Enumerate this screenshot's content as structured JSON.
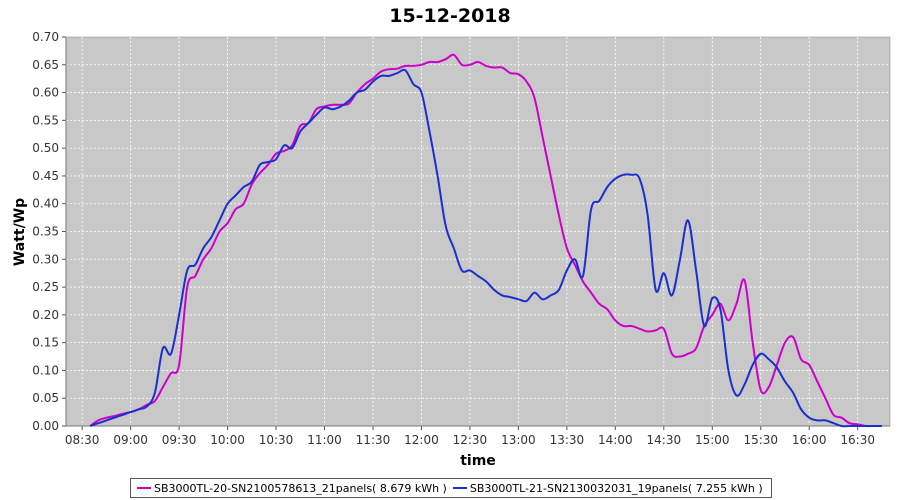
{
  "chart_data": {
    "type": "line",
    "title": "15-12-2018",
    "xlabel": "time",
    "ylabel": "Watt/Wp",
    "xlim": [
      "08:20",
      "16:50"
    ],
    "ylim": [
      0,
      0.7
    ],
    "y_ticks": [
      "0.00",
      "0.05",
      "0.10",
      "0.15",
      "0.20",
      "0.25",
      "0.30",
      "0.35",
      "0.40",
      "0.45",
      "0.50",
      "0.55",
      "0.60",
      "0.65",
      "0.70"
    ],
    "x_ticks": [
      "08:30",
      "09:00",
      "09:30",
      "10:00",
      "10:30",
      "11:00",
      "11:30",
      "12:00",
      "12:30",
      "13:00",
      "13:30",
      "14:00",
      "14:30",
      "15:00",
      "15:30",
      "16:00",
      "16:30"
    ],
    "grid": true,
    "legend_position": "bottom",
    "background": "#c8c8c8",
    "series": [
      {
        "name": "SB3000TL-20-SN2100578613_21panels( 8.679 kWh )",
        "color": "#cc00cc",
        "x": [
          "08:35",
          "08:40",
          "08:45",
          "08:50",
          "08:55",
          "09:00",
          "09:05",
          "09:10",
          "09:15",
          "09:20",
          "09:25",
          "09:30",
          "09:35",
          "09:40",
          "09:45",
          "09:50",
          "09:55",
          "10:00",
          "10:05",
          "10:10",
          "10:15",
          "10:20",
          "10:25",
          "10:30",
          "10:35",
          "10:40",
          "10:45",
          "10:50",
          "10:55",
          "11:00",
          "11:05",
          "11:10",
          "11:15",
          "11:20",
          "11:25",
          "11:30",
          "11:35",
          "11:40",
          "11:45",
          "11:50",
          "11:55",
          "12:00",
          "12:05",
          "12:10",
          "12:15",
          "12:20",
          "12:25",
          "12:30",
          "12:35",
          "12:40",
          "12:45",
          "12:50",
          "12:55",
          "13:00",
          "13:05",
          "13:10",
          "13:15",
          "13:20",
          "13:25",
          "13:30",
          "13:35",
          "13:40",
          "13:45",
          "13:50",
          "13:55",
          "14:00",
          "14:05",
          "14:10",
          "14:15",
          "14:20",
          "14:25",
          "14:30",
          "14:35",
          "14:40",
          "14:45",
          "14:50",
          "14:55",
          "15:00",
          "15:05",
          "15:10",
          "15:15",
          "15:20",
          "15:25",
          "15:30",
          "15:35",
          "15:40",
          "15:45",
          "15:50",
          "15:55",
          "16:00",
          "16:05",
          "16:10",
          "16:15",
          "16:20",
          "16:25",
          "16:30",
          "16:35",
          "16:40"
        ],
        "values": [
          0.0,
          0.01,
          0.015,
          0.018,
          0.022,
          0.025,
          0.03,
          0.038,
          0.045,
          0.07,
          0.095,
          0.11,
          0.25,
          0.27,
          0.3,
          0.32,
          0.35,
          0.365,
          0.39,
          0.4,
          0.435,
          0.455,
          0.47,
          0.49,
          0.495,
          0.505,
          0.54,
          0.545,
          0.57,
          0.575,
          0.578,
          0.578,
          0.58,
          0.6,
          0.615,
          0.625,
          0.638,
          0.642,
          0.643,
          0.648,
          0.648,
          0.65,
          0.655,
          0.655,
          0.66,
          0.668,
          0.65,
          0.65,
          0.655,
          0.648,
          0.645,
          0.645,
          0.635,
          0.633,
          0.62,
          0.59,
          0.52,
          0.45,
          0.38,
          0.32,
          0.29,
          0.26,
          0.24,
          0.22,
          0.21,
          0.19,
          0.18,
          0.18,
          0.175,
          0.17,
          0.172,
          0.175,
          0.13,
          0.125,
          0.13,
          0.14,
          0.18,
          0.2,
          0.22,
          0.19,
          0.22,
          0.262,
          0.15,
          0.065,
          0.07,
          0.11,
          0.15,
          0.16,
          0.12,
          0.11,
          0.08,
          0.05,
          0.02,
          0.015,
          0.005,
          0.003,
          0.0,
          0.0
        ]
      },
      {
        "name": "SB3000TL-21-SN2130032031_19panels( 7.255 kWh )",
        "color": "#1a2fcc",
        "x": [
          "08:35",
          "08:40",
          "08:45",
          "08:50",
          "08:55",
          "09:00",
          "09:05",
          "09:10",
          "09:15",
          "09:20",
          "09:25",
          "09:30",
          "09:35",
          "09:40",
          "09:45",
          "09:50",
          "09:55",
          "10:00",
          "10:05",
          "10:10",
          "10:15",
          "10:20",
          "10:25",
          "10:30",
          "10:35",
          "10:40",
          "10:45",
          "10:50",
          "10:55",
          "11:00",
          "11:05",
          "11:10",
          "11:15",
          "11:20",
          "11:25",
          "11:30",
          "11:35",
          "11:40",
          "11:45",
          "11:50",
          "11:55",
          "12:00",
          "12:05",
          "12:10",
          "12:15",
          "12:20",
          "12:25",
          "12:30",
          "12:35",
          "12:40",
          "12:45",
          "12:50",
          "12:55",
          "13:00",
          "13:05",
          "13:10",
          "13:15",
          "13:20",
          "13:25",
          "13:30",
          "13:35",
          "13:40",
          "13:45",
          "13:50",
          "13:55",
          "14:00",
          "14:05",
          "14:10",
          "14:15",
          "14:20",
          "14:25",
          "14:30",
          "14:35",
          "14:40",
          "14:45",
          "14:50",
          "14:55",
          "15:00",
          "15:05",
          "15:10",
          "15:15",
          "15:20",
          "15:25",
          "15:30",
          "15:35",
          "15:40",
          "15:45",
          "15:50",
          "15:55",
          "16:00",
          "16:05",
          "16:10",
          "16:15",
          "16:20",
          "16:25",
          "16:30",
          "16:35",
          "16:40",
          "16:45"
        ],
        "values": [
          0.0,
          0.005,
          0.01,
          0.015,
          0.02,
          0.025,
          0.03,
          0.035,
          0.06,
          0.14,
          0.13,
          0.2,
          0.28,
          0.29,
          0.32,
          0.34,
          0.37,
          0.4,
          0.415,
          0.43,
          0.44,
          0.47,
          0.475,
          0.48,
          0.505,
          0.5,
          0.53,
          0.545,
          0.56,
          0.573,
          0.57,
          0.575,
          0.585,
          0.6,
          0.605,
          0.62,
          0.63,
          0.63,
          0.635,
          0.64,
          0.615,
          0.6,
          0.53,
          0.45,
          0.36,
          0.32,
          0.28,
          0.28,
          0.27,
          0.26,
          0.245,
          0.235,
          0.232,
          0.228,
          0.225,
          0.24,
          0.228,
          0.235,
          0.245,
          0.28,
          0.3,
          0.27,
          0.39,
          0.405,
          0.43,
          0.445,
          0.452,
          0.452,
          0.445,
          0.38,
          0.245,
          0.275,
          0.235,
          0.3,
          0.37,
          0.28,
          0.18,
          0.23,
          0.21,
          0.1,
          0.055,
          0.075,
          0.11,
          0.13,
          0.12,
          0.105,
          0.08,
          0.06,
          0.03,
          0.015,
          0.01,
          0.01,
          0.005,
          0.0,
          0.0,
          0.0,
          0.0,
          0.0,
          0.0
        ]
      }
    ]
  },
  "legend": {
    "items": [
      {
        "label": "SB3000TL-20-SN2100578613_21panels( 8.679 kWh )",
        "color": "#cc00cc"
      },
      {
        "label": "SB3000TL-21-SN2130032031_19panels( 7.255 kWh )",
        "color": "#1a2fcc"
      }
    ]
  }
}
